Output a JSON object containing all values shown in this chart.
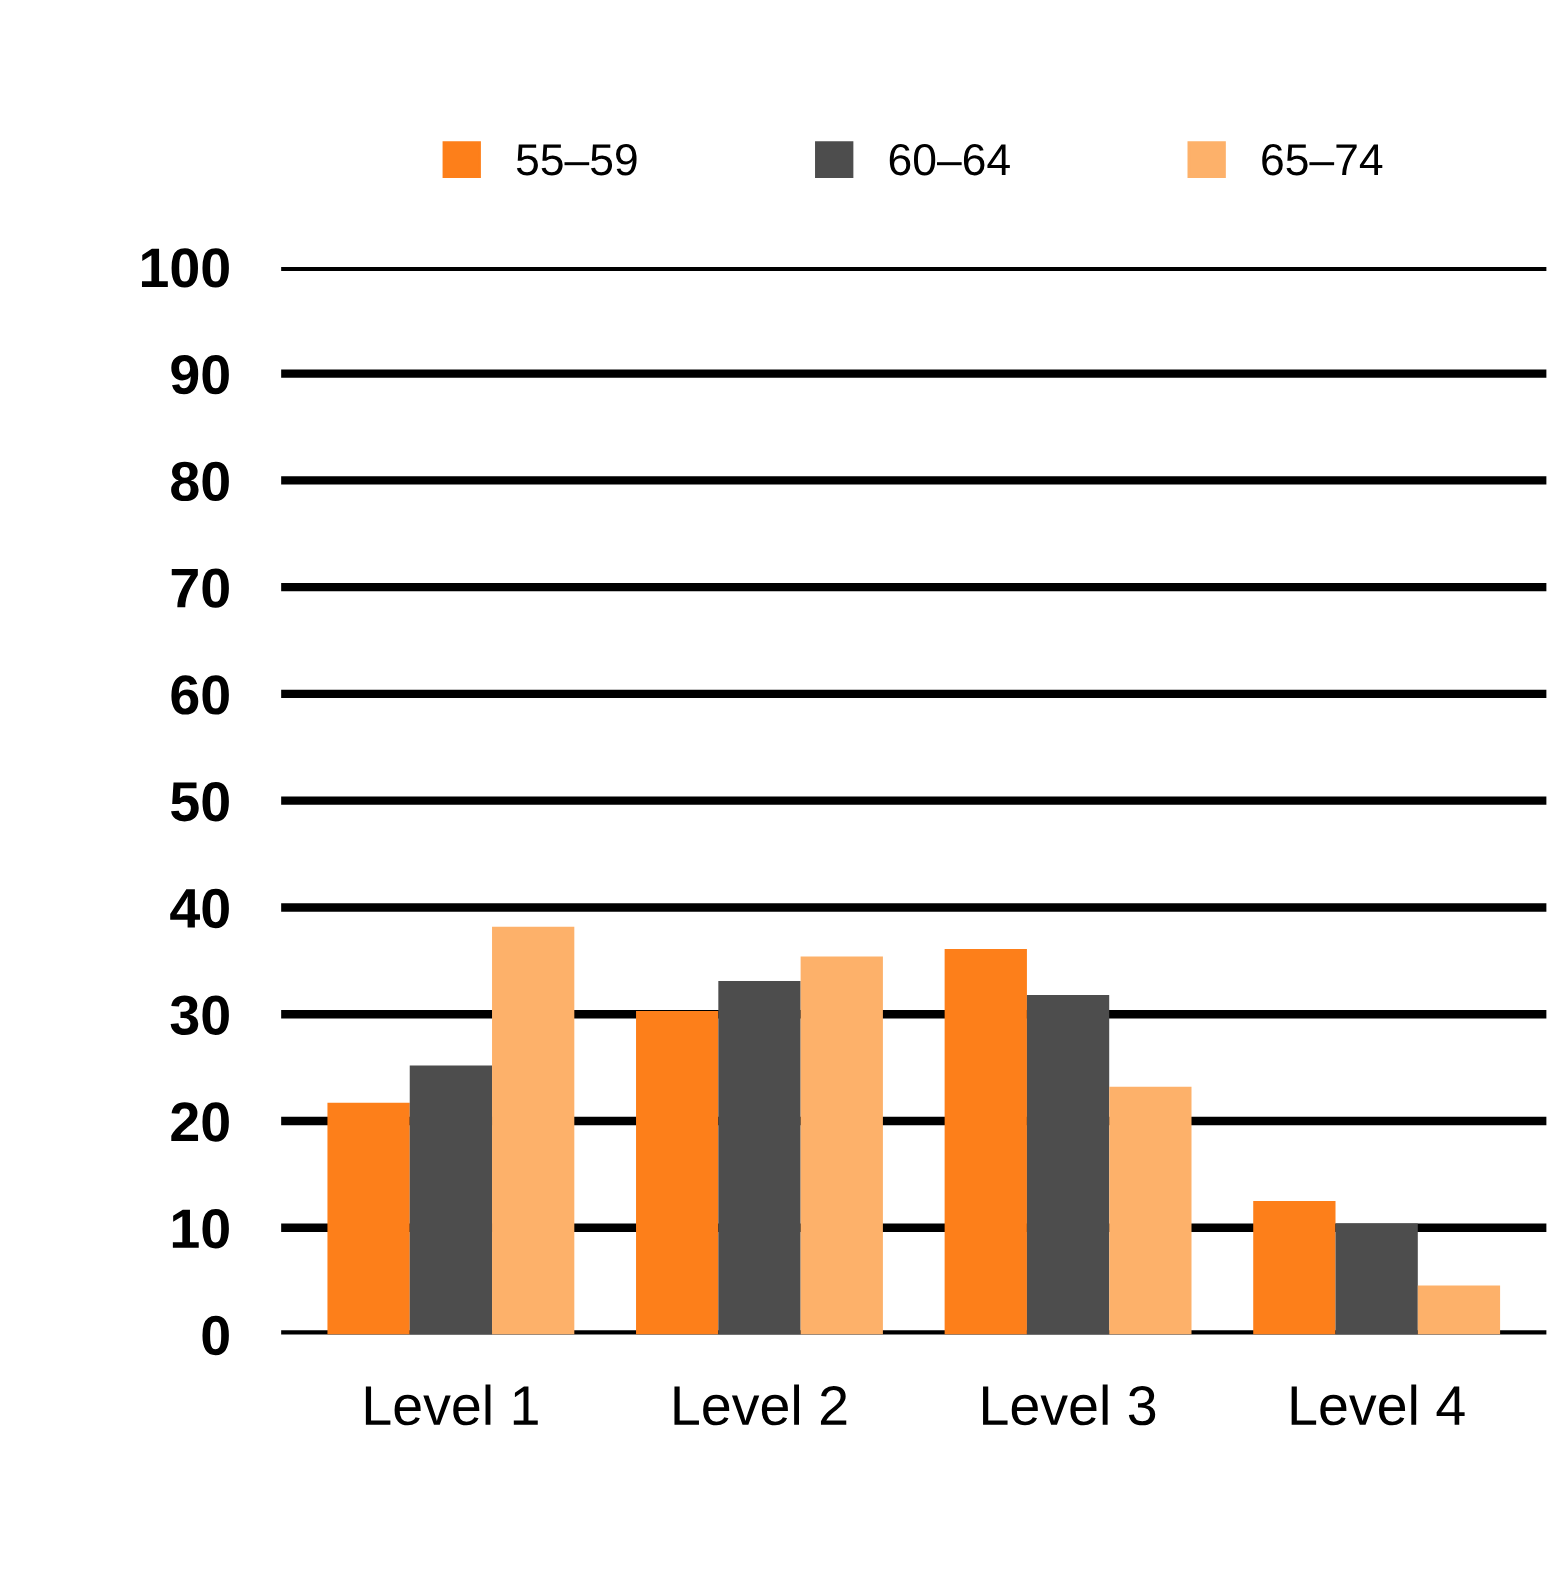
{
  "chart_data": {
    "type": "bar",
    "categories": [
      "Level 1",
      "Level 2",
      "Level 3",
      "Level 4"
    ],
    "series": [
      {
        "name": "55–59",
        "color": "#fd7f1a",
        "values": [
          21.7,
          30.3,
          36.1,
          12.5
        ]
      },
      {
        "name": "60–64",
        "color": "#4d4d4d",
        "values": [
          25.2,
          33.1,
          31.8,
          10.4
        ]
      },
      {
        "name": "65–74",
        "color": "#fdb16a",
        "values": [
          38.2,
          35.4,
          23.2,
          4.6
        ]
      }
    ],
    "ylim": [
      0,
      100
    ],
    "yticks": [
      0,
      10,
      20,
      30,
      40,
      50,
      60,
      70,
      80,
      90,
      100
    ],
    "grid": "y",
    "legend": "top"
  }
}
